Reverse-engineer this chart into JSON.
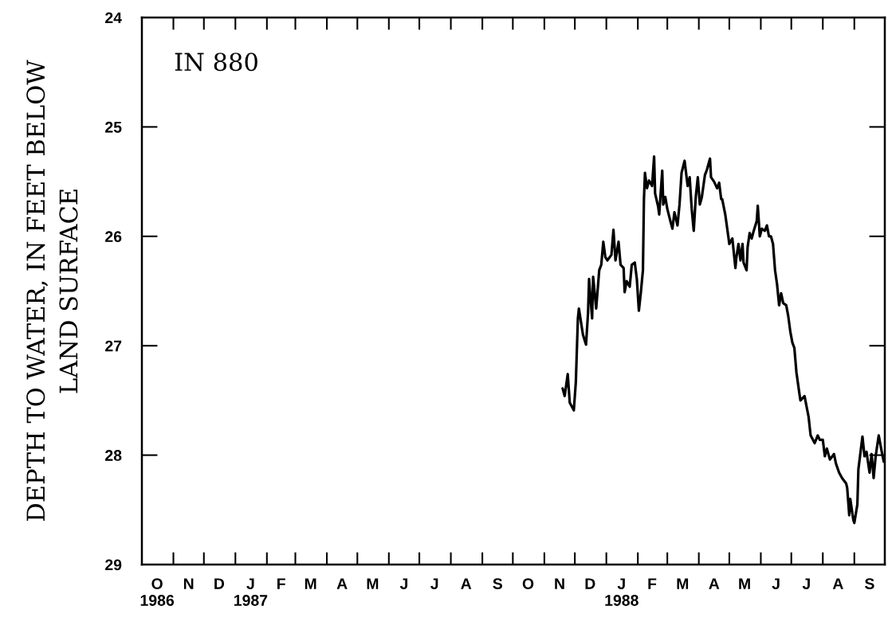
{
  "chart_data": {
    "type": "line",
    "ylabel": "DEPTH TO WATER, IN FEET BELOW\nLAND SURFACE",
    "annotations": [
      "IN 880"
    ],
    "x": [
      "1987-11-19",
      "1987-11-21",
      "1987-11-24",
      "1987-11-26",
      "1987-11-30",
      "1987-12-02",
      "1987-12-04",
      "1987-12-05",
      "1987-12-09",
      "1987-12-12",
      "1987-12-14",
      "1987-12-15",
      "1987-12-18",
      "1987-12-19",
      "1987-12-22",
      "1987-12-25",
      "1987-12-27",
      "1987-12-29",
      "1987-12-31",
      "1988-01-02",
      "1988-01-06",
      "1988-01-08",
      "1988-01-10",
      "1988-01-13",
      "1988-01-15",
      "1988-01-18",
      "1988-01-19",
      "1988-01-21",
      "1988-01-24",
      "1988-01-26",
      "1988-01-29",
      "1988-01-31",
      "1988-02-02",
      "1988-02-04",
      "1988-02-06",
      "1988-02-07",
      "1988-02-08",
      "1988-02-10",
      "1988-02-12",
      "1988-02-15",
      "1988-02-17",
      "1988-02-18",
      "1988-02-21",
      "1988-02-22",
      "1988-02-25",
      "1988-02-26",
      "1988-02-28",
      "1988-03-01",
      "1988-03-04",
      "1988-03-06",
      "1988-03-08",
      "1988-03-11",
      "1988-03-13",
      "1988-03-15",
      "1988-03-18",
      "1988-03-21",
      "1988-03-23",
      "1988-03-25",
      "1988-03-27",
      "1988-03-29",
      "1988-03-31",
      "1988-04-02",
      "1988-04-04",
      "1988-04-07",
      "1988-04-09",
      "1988-04-12",
      "1988-04-13",
      "1988-04-16",
      "1988-04-19",
      "1988-04-21",
      "1988-04-23",
      "1988-04-24",
      "1988-04-27",
      "1988-04-30",
      "1988-05-01",
      "1988-05-04",
      "1988-05-07",
      "1988-05-08",
      "1988-05-10",
      "1988-05-12",
      "1988-05-14",
      "1988-05-15",
      "1988-05-18",
      "1988-05-19",
      "1988-05-21",
      "1988-05-23",
      "1988-05-25",
      "1988-05-28",
      "1988-05-29",
      "1988-05-31",
      "1988-06-02",
      "1988-06-05",
      "1988-06-07",
      "1988-06-09",
      "1988-06-11",
      "1988-06-13",
      "1988-06-15",
      "1988-06-17",
      "1988-06-19",
      "1988-06-21",
      "1988-06-23",
      "1988-06-26",
      "1988-06-28",
      "1988-06-30",
      "1988-07-02",
      "1988-07-04",
      "1988-07-06",
      "1988-07-09",
      "1988-07-10",
      "1988-07-14",
      "1988-07-18",
      "1988-07-20",
      "1988-07-24",
      "1988-07-27",
      "1988-07-29",
      "1988-08-01",
      "1988-08-03",
      "1988-08-05",
      "1988-08-08",
      "1988-08-12",
      "1988-08-14",
      "1988-08-17",
      "1988-08-20",
      "1988-08-24",
      "1988-08-25",
      "1988-08-27",
      "1988-08-28",
      "1988-08-31",
      "1988-09-01",
      "1988-09-04",
      "1988-09-05",
      "1988-09-09",
      "1988-09-11",
      "1988-09-13",
      "1988-09-16",
      "1988-09-18",
      "1988-09-20",
      "1988-09-22",
      "1988-09-25",
      "1988-09-28",
      "1988-09-30"
    ],
    "values": [
      27.39,
      27.46,
      27.26,
      27.52,
      27.59,
      27.33,
      26.75,
      26.66,
      26.9,
      26.99,
      26.7,
      26.39,
      26.75,
      26.37,
      26.66,
      26.31,
      26.26,
      26.05,
      26.19,
      26.22,
      26.17,
      25.94,
      26.22,
      26.05,
      26.26,
      26.29,
      26.51,
      26.41,
      26.46,
      26.26,
      26.24,
      26.39,
      26.68,
      26.51,
      26.31,
      25.66,
      25.42,
      25.56,
      25.49,
      25.54,
      25.27,
      25.61,
      25.73,
      25.8,
      25.4,
      25.71,
      25.64,
      25.75,
      25.86,
      25.93,
      25.78,
      25.9,
      25.71,
      25.42,
      25.31,
      25.54,
      25.46,
      25.75,
      25.95,
      25.64,
      25.46,
      25.71,
      25.64,
      25.44,
      25.39,
      25.29,
      25.46,
      25.5,
      25.56,
      25.51,
      25.66,
      25.66,
      25.8,
      26.0,
      26.07,
      26.02,
      26.29,
      26.19,
      26.07,
      26.22,
      26.07,
      26.24,
      26.31,
      26.1,
      25.97,
      26.02,
      25.95,
      25.86,
      25.72,
      26.0,
      25.93,
      25.95,
      25.9,
      26.0,
      26.0,
      26.07,
      26.31,
      26.44,
      26.63,
      26.52,
      26.61,
      26.63,
      26.73,
      26.87,
      26.97,
      27.02,
      27.24,
      27.44,
      27.5,
      27.46,
      27.65,
      27.82,
      27.89,
      27.82,
      27.86,
      27.86,
      28.01,
      27.94,
      28.04,
      27.99,
      28.08,
      28.16,
      28.21,
      28.26,
      28.3,
      28.55,
      28.4,
      28.59,
      28.62,
      28.45,
      28.13,
      27.83,
      28.01,
      27.97,
      28.16,
      27.99,
      28.21,
      28.01,
      27.82,
      27.97,
      28.06
    ],
    "color": "#000000",
    "line_style": "solid",
    "xlim": [
      "1986-10-01",
      "1988-10-01"
    ],
    "xticks": [
      {
        "value": "1986-10-16",
        "label": "O\n1986"
      },
      {
        "value": "1986-11-01",
        "label": null
      },
      {
        "value": "1986-11-16",
        "label": "N"
      },
      {
        "value": "1986-12-01",
        "label": null
      },
      {
        "value": "1986-12-16",
        "label": "D"
      },
      {
        "value": "1987-01-01",
        "label": null
      },
      {
        "value": "1987-01-16",
        "label": "J\n1987"
      },
      {
        "value": "1987-02-01",
        "label": null
      },
      {
        "value": "1987-02-15",
        "label": "F"
      },
      {
        "value": "1987-03-01",
        "label": null
      },
      {
        "value": "1987-03-16",
        "label": "M"
      },
      {
        "value": "1987-04-01",
        "label": null
      },
      {
        "value": "1987-04-16",
        "label": "A"
      },
      {
        "value": "1987-05-01",
        "label": null
      },
      {
        "value": "1987-05-16",
        "label": "M"
      },
      {
        "value": "1987-06-01",
        "label": null
      },
      {
        "value": "1987-06-16",
        "label": "J"
      },
      {
        "value": "1987-07-01",
        "label": null
      },
      {
        "value": "1987-07-16",
        "label": "J"
      },
      {
        "value": "1987-08-01",
        "label": null
      },
      {
        "value": "1987-08-16",
        "label": "A"
      },
      {
        "value": "1987-09-01",
        "label": null
      },
      {
        "value": "1987-09-16",
        "label": "S"
      },
      {
        "value": "1987-10-01",
        "label": null
      },
      {
        "value": "1987-10-16",
        "label": "O"
      },
      {
        "value": "1987-11-01",
        "label": null
      },
      {
        "value": "1987-11-16",
        "label": "N"
      },
      {
        "value": "1987-12-01",
        "label": null
      },
      {
        "value": "1987-12-16",
        "label": "D"
      },
      {
        "value": "1988-01-01",
        "label": null
      },
      {
        "value": "1988-01-16",
        "label": "J\n1988"
      },
      {
        "value": "1988-02-01",
        "label": null
      },
      {
        "value": "1988-02-15",
        "label": "F"
      },
      {
        "value": "1988-03-01",
        "label": null
      },
      {
        "value": "1988-03-16",
        "label": "M"
      },
      {
        "value": "1988-04-01",
        "label": null
      },
      {
        "value": "1988-04-16",
        "label": "A"
      },
      {
        "value": "1988-05-01",
        "label": null
      },
      {
        "value": "1988-05-16",
        "label": "M"
      },
      {
        "value": "1988-06-01",
        "label": null
      },
      {
        "value": "1988-06-16",
        "label": "J"
      },
      {
        "value": "1988-07-01",
        "label": null
      },
      {
        "value": "1988-07-16",
        "label": "J"
      },
      {
        "value": "1988-08-01",
        "label": null
      },
      {
        "value": "1988-08-16",
        "label": "A"
      },
      {
        "value": "1988-09-01",
        "label": null
      },
      {
        "value": "1988-09-16",
        "label": "S"
      }
    ],
    "ylim": [
      29,
      24
    ],
    "yticks": [
      24,
      25,
      26,
      27,
      28,
      29
    ]
  }
}
